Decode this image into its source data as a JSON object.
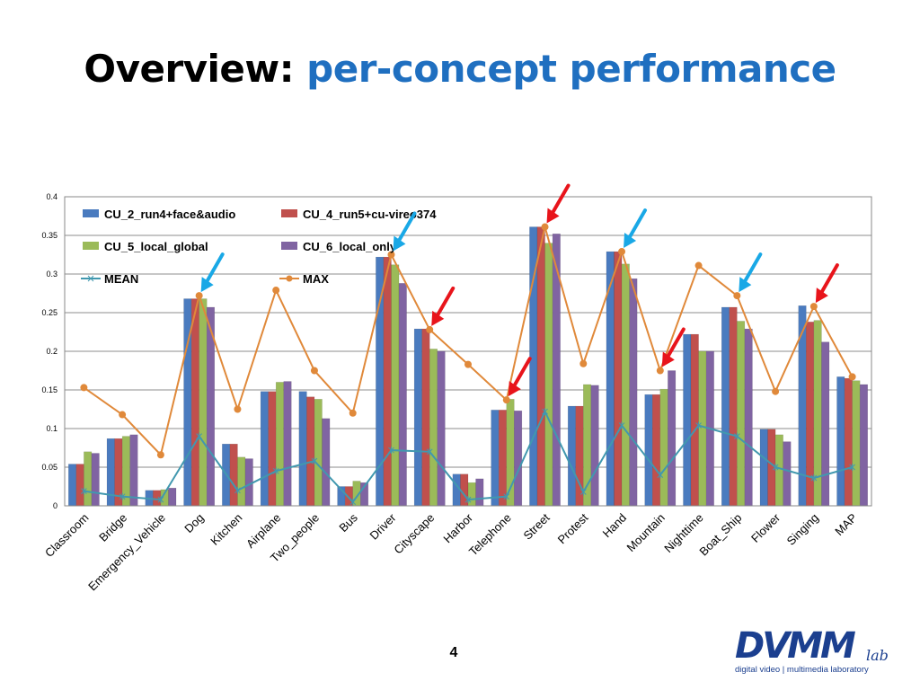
{
  "slide": {
    "title_prefix": "Overview:",
    "title_accent": "per-concept performance",
    "page_number": "4"
  },
  "logo": {
    "main": "DVMM",
    "lab": "lab",
    "subtitle": "digital video | multimedia laboratory"
  },
  "colors": {
    "accent": "#1f6fc0",
    "arrow_red": "#e8141b",
    "arrow_blue": "#19a8e6"
  },
  "chart_data": {
    "type": "bar",
    "categories": [
      "Classroom",
      "Bridge",
      "Emergency_Vehicle",
      "Dog",
      "Kitchen",
      "Airplane",
      "Two_people",
      "Bus",
      "Driver",
      "Cityscape",
      "Harbor",
      "Telephone",
      "Street",
      "Protest",
      "Hand",
      "Mountain",
      "Nighttime",
      "Boat_Ship",
      "Flower",
      "Singing",
      "MAP"
    ],
    "series": [
      {
        "name": "CU_2_run4+face&audio",
        "type": "bar",
        "color": "#4a7bbf",
        "values": [
          0.054,
          0.087,
          0.02,
          0.268,
          0.08,
          0.148,
          0.148,
          0.025,
          0.322,
          0.229,
          0.041,
          0.124,
          0.361,
          0.129,
          0.329,
          0.144,
          0.222,
          0.257,
          0.099,
          0.259,
          0.167
        ]
      },
      {
        "name": "CU_4_run5+cu-vireo374",
        "type": "bar",
        "color": "#c0504d",
        "values": [
          0.054,
          0.087,
          0.02,
          0.268,
          0.08,
          0.148,
          0.141,
          0.025,
          0.322,
          0.229,
          0.041,
          0.124,
          0.361,
          0.129,
          0.329,
          0.144,
          0.222,
          0.257,
          0.099,
          0.238,
          0.165
        ]
      },
      {
        "name": "CU_5_local_global",
        "type": "bar",
        "color": "#9bbb59",
        "values": [
          0.07,
          0.09,
          0.021,
          0.268,
          0.063,
          0.16,
          0.138,
          0.032,
          0.312,
          0.203,
          0.03,
          0.138,
          0.34,
          0.157,
          0.313,
          0.151,
          0.2,
          0.239,
          0.092,
          0.24,
          0.162
        ]
      },
      {
        "name": "CU_6_local_only",
        "type": "bar",
        "color": "#8064a2",
        "values": [
          0.068,
          0.092,
          0.023,
          0.257,
          0.061,
          0.161,
          0.113,
          0.03,
          0.288,
          0.2,
          0.035,
          0.123,
          0.352,
          0.156,
          0.294,
          0.175,
          0.2,
          0.229,
          0.083,
          0.212,
          0.157
        ]
      },
      {
        "name": "MEAN",
        "type": "line",
        "color": "#4198af",
        "marker": "star",
        "values": [
          0.019,
          0.012,
          0.008,
          0.09,
          0.02,
          0.045,
          0.058,
          0.005,
          0.072,
          0.07,
          0.008,
          0.012,
          0.122,
          0.018,
          0.104,
          0.04,
          0.104,
          0.09,
          0.05,
          0.036,
          0.05
        ]
      },
      {
        "name": "MAX",
        "type": "line",
        "color": "#e0893a",
        "marker": "circle",
        "values": [
          0.153,
          0.118,
          0.066,
          0.272,
          0.125,
          0.279,
          0.175,
          0.12,
          0.325,
          0.228,
          0.183,
          0.137,
          0.361,
          0.184,
          0.329,
          0.175,
          0.311,
          0.272,
          0.148,
          0.258,
          0.167
        ]
      }
    ],
    "yticks": [
      "0",
      "0.05",
      "0.1",
      "0.15",
      "0.2",
      "0.25",
      "0.3",
      "0.35",
      "0.4"
    ],
    "ylim": [
      0,
      0.4
    ],
    "grid": true,
    "legend": "top-left, inside plot, two columns",
    "annotations": {
      "red_arrows_at": [
        "Cityscape",
        "Telephone",
        "Street",
        "Mountain",
        "Singing"
      ],
      "blue_arrows_at": [
        "Dog",
        "Driver",
        "Hand",
        "Boat_Ship"
      ]
    }
  }
}
